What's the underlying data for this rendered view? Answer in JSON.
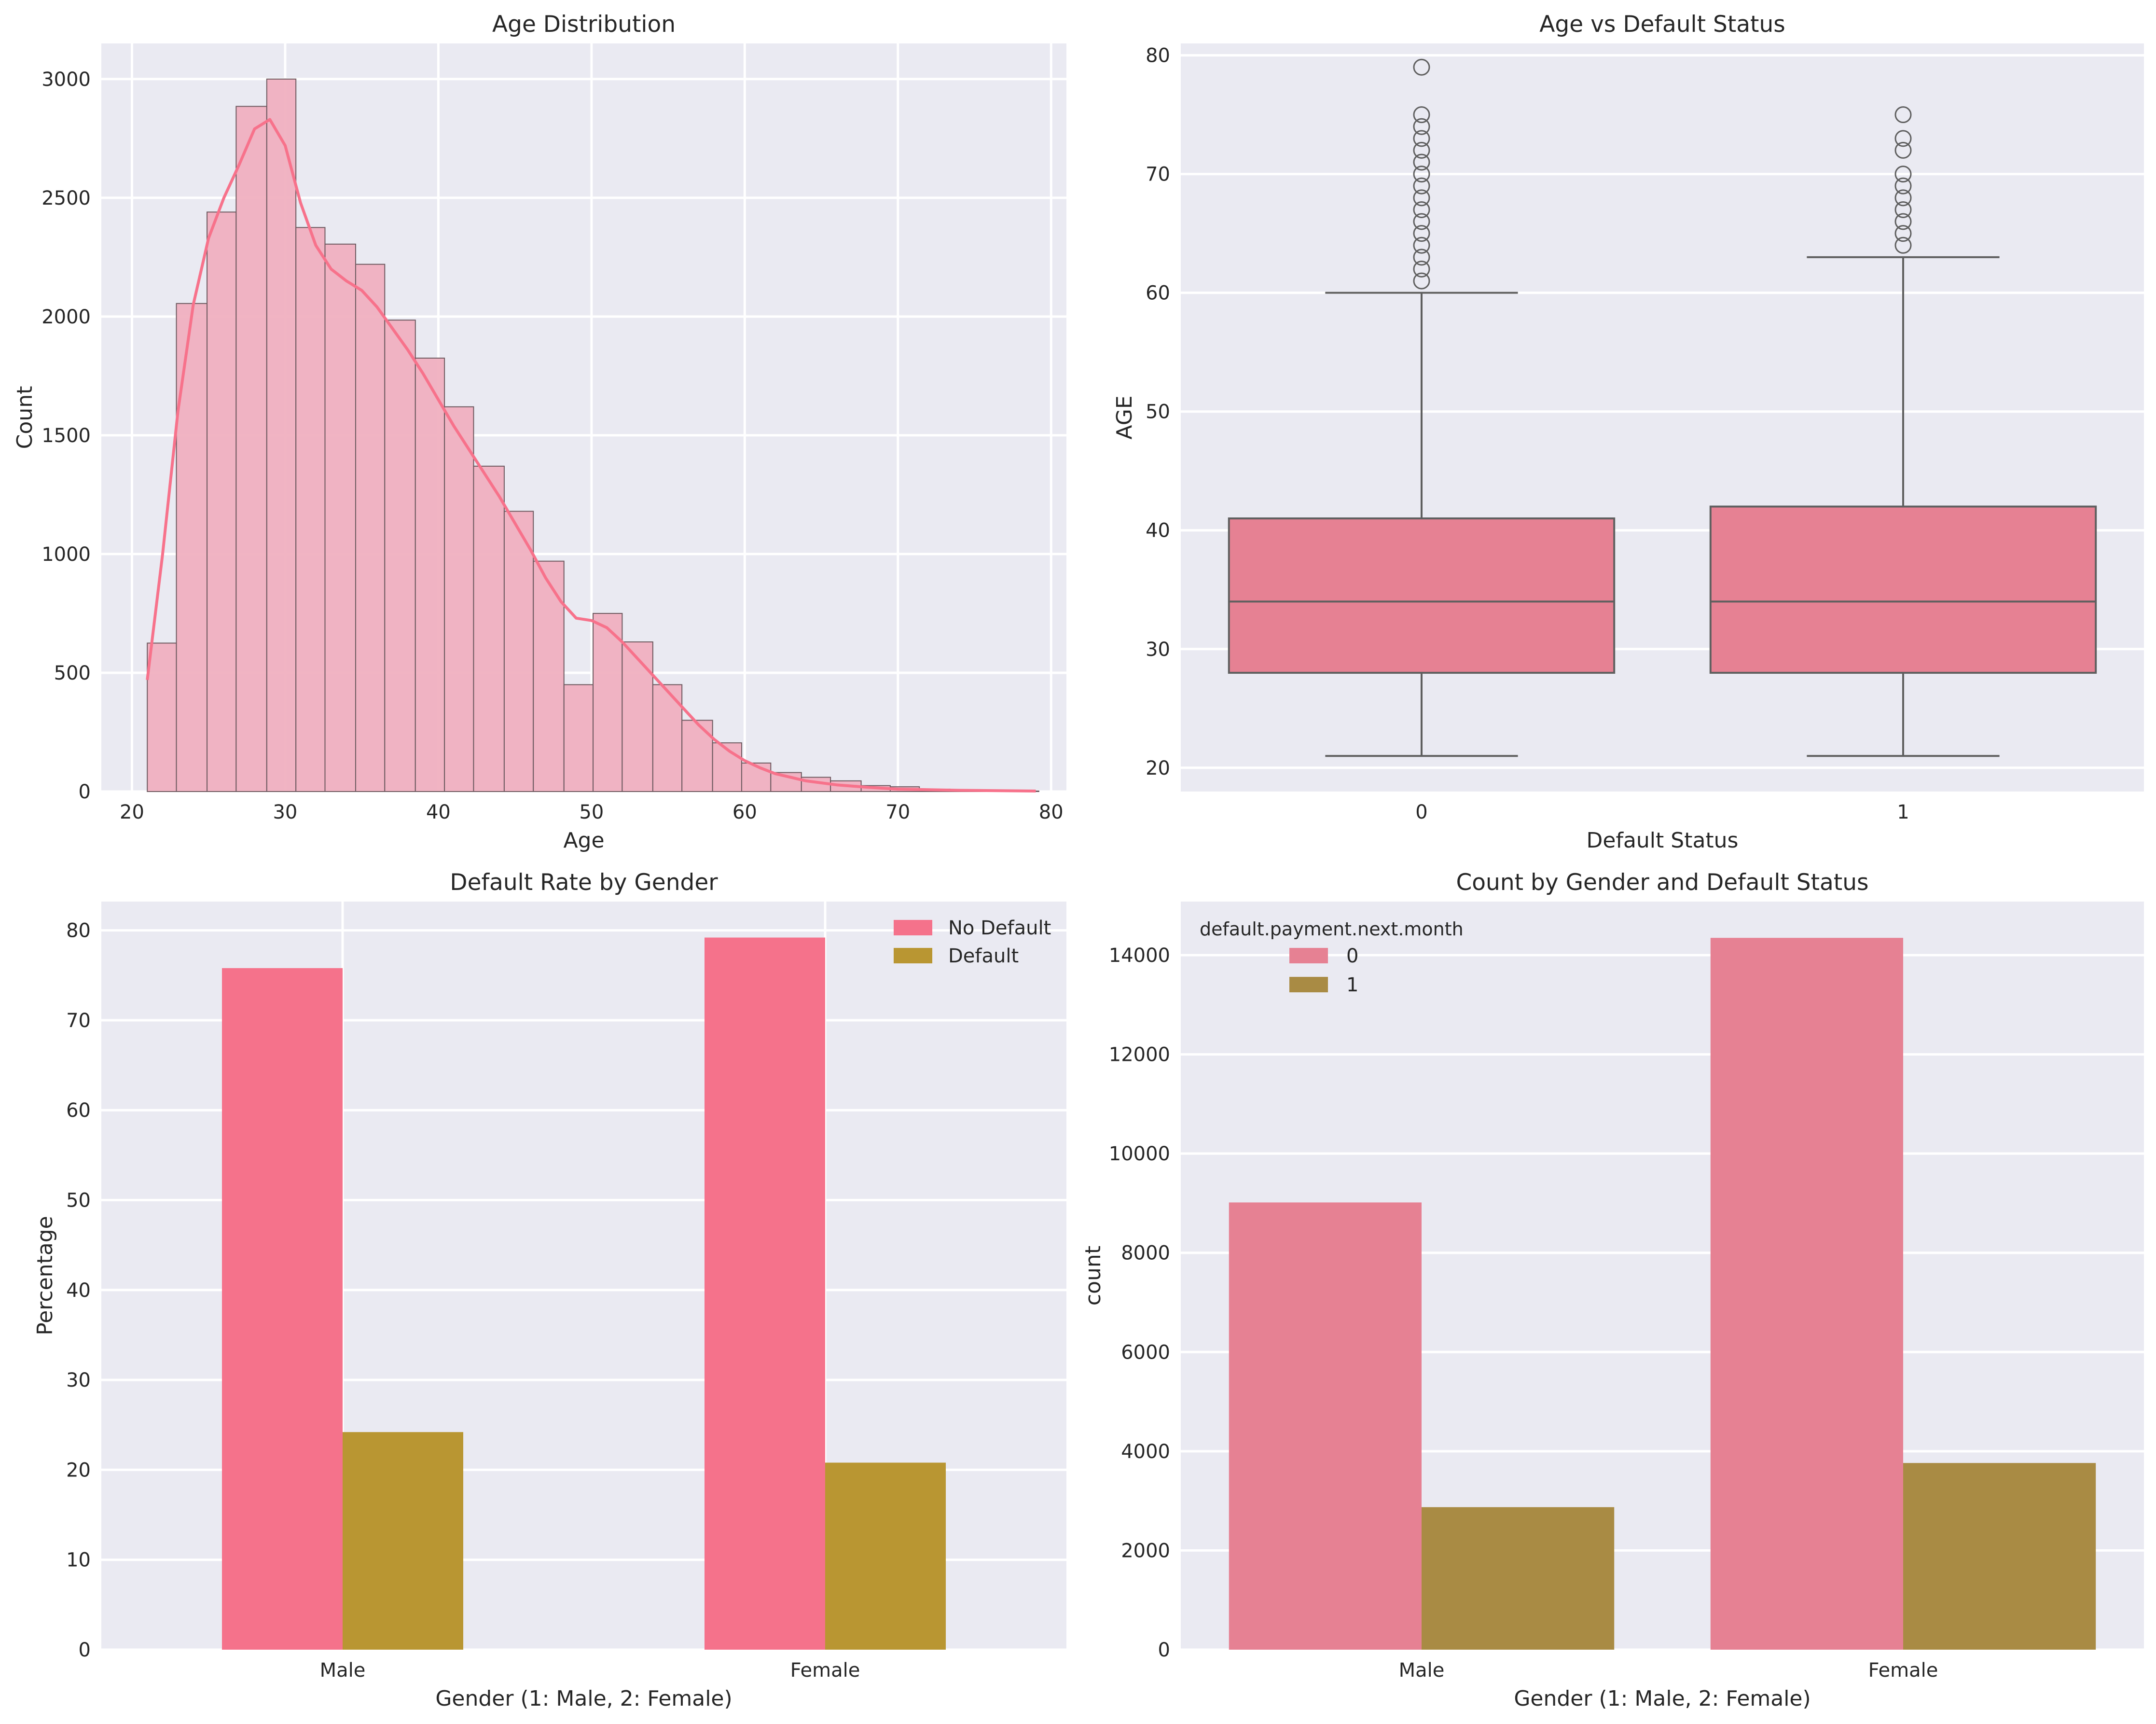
{
  "chart_data": [
    {
      "id": "age-hist",
      "type": "bar",
      "title": "Age Distribution",
      "xlabel": "Age",
      "ylabel": "Count",
      "xlim": [
        18,
        81
      ],
      "ylim": [
        0,
        3150
      ],
      "xticks": [
        20,
        30,
        40,
        50,
        60,
        70,
        80
      ],
      "yticks": [
        0,
        500,
        1000,
        1500,
        2000,
        2500,
        3000
      ],
      "bins": [
        {
          "x0": 21.0,
          "x1": 22.9,
          "count": 625
        },
        {
          "x0": 22.9,
          "x1": 24.9,
          "count": 2055
        },
        {
          "x0": 24.9,
          "x1": 26.8,
          "count": 2440
        },
        {
          "x0": 26.8,
          "x1": 28.8,
          "count": 2885
        },
        {
          "x0": 28.8,
          "x1": 30.7,
          "count": 3000
        },
        {
          "x0": 30.7,
          "x1": 32.6,
          "count": 2375
        },
        {
          "x0": 32.6,
          "x1": 34.6,
          "count": 2305
        },
        {
          "x0": 34.6,
          "x1": 36.5,
          "count": 2220
        },
        {
          "x0": 36.5,
          "x1": 38.5,
          "count": 1985
        },
        {
          "x0": 38.5,
          "x1": 40.4,
          "count": 1825
        },
        {
          "x0": 40.4,
          "x1": 42.3,
          "count": 1620
        },
        {
          "x0": 42.3,
          "x1": 44.3,
          "count": 1370
        },
        {
          "x0": 44.3,
          "x1": 46.2,
          "count": 1180
        },
        {
          "x0": 46.2,
          "x1": 48.2,
          "count": 970
        },
        {
          "x0": 48.2,
          "x1": 50.1,
          "count": 450
        },
        {
          "x0": 50.1,
          "x1": 52.0,
          "count": 750
        },
        {
          "x0": 52.0,
          "x1": 54.0,
          "count": 630
        },
        {
          "x0": 54.0,
          "x1": 55.9,
          "count": 450
        },
        {
          "x0": 55.9,
          "x1": 57.9,
          "count": 300
        },
        {
          "x0": 57.9,
          "x1": 59.8,
          "count": 205
        },
        {
          "x0": 59.8,
          "x1": 61.7,
          "count": 120
        },
        {
          "x0": 61.7,
          "x1": 63.7,
          "count": 80
        },
        {
          "x0": 63.7,
          "x1": 65.6,
          "count": 60
        },
        {
          "x0": 65.6,
          "x1": 67.6,
          "count": 45
        },
        {
          "x0": 67.6,
          "x1": 69.5,
          "count": 25
        },
        {
          "x0": 69.5,
          "x1": 71.4,
          "count": 20
        },
        {
          "x0": 71.4,
          "x1": 73.4,
          "count": 10
        },
        {
          "x0": 73.4,
          "x1": 75.3,
          "count": 8
        },
        {
          "x0": 75.3,
          "x1": 77.3,
          "count": 3
        },
        {
          "x0": 77.3,
          "x1": 79.2,
          "count": 2
        }
      ],
      "kde": [
        [
          21,
          470
        ],
        [
          22,
          1000
        ],
        [
          23,
          1600
        ],
        [
          24,
          2050
        ],
        [
          25,
          2330
        ],
        [
          26,
          2500
        ],
        [
          27,
          2640
        ],
        [
          28,
          2790
        ],
        [
          29,
          2830
        ],
        [
          30,
          2720
        ],
        [
          31,
          2480
        ],
        [
          32,
          2300
        ],
        [
          33,
          2200
        ],
        [
          34,
          2150
        ],
        [
          35,
          2110
        ],
        [
          36,
          2040
        ],
        [
          37,
          1950
        ],
        [
          38,
          1860
        ],
        [
          39,
          1760
        ],
        [
          40,
          1650
        ],
        [
          41,
          1540
        ],
        [
          42,
          1440
        ],
        [
          43,
          1340
        ],
        [
          44,
          1240
        ],
        [
          45,
          1130
        ],
        [
          46,
          1020
        ],
        [
          47,
          900
        ],
        [
          48,
          800
        ],
        [
          49,
          730
        ],
        [
          50,
          720
        ],
        [
          51,
          690
        ],
        [
          52,
          630
        ],
        [
          53,
          560
        ],
        [
          54,
          490
        ],
        [
          55,
          420
        ],
        [
          56,
          350
        ],
        [
          57,
          280
        ],
        [
          58,
          220
        ],
        [
          59,
          170
        ],
        [
          60,
          130
        ],
        [
          61,
          100
        ],
        [
          62,
          75
        ],
        [
          64,
          45
        ],
        [
          66,
          28
        ],
        [
          68,
          18
        ],
        [
          70,
          10
        ],
        [
          74,
          5
        ],
        [
          79,
          2
        ]
      ]
    },
    {
      "id": "age-box",
      "type": "box",
      "title": "Age vs Default Status",
      "xlabel": "Default Status",
      "ylabel": "AGE",
      "ylim": [
        18,
        81
      ],
      "yticks": [
        20,
        30,
        40,
        50,
        60,
        70,
        80
      ],
      "categories": [
        "0",
        "1"
      ],
      "boxes": [
        {
          "category": "0",
          "whisker_low": 21,
          "q1": 28,
          "median": 34,
          "q3": 41,
          "whisker_high": 60,
          "outliers": [
            61,
            62,
            63,
            64,
            65,
            66,
            67,
            68,
            69,
            70,
            71,
            72,
            73,
            74,
            75,
            79
          ]
        },
        {
          "category": "1",
          "whisker_low": 21,
          "q1": 28,
          "median": 34,
          "q3": 42,
          "whisker_high": 63,
          "outliers": [
            64,
            65,
            66,
            67,
            68,
            69,
            70,
            72,
            73,
            75
          ]
        }
      ]
    },
    {
      "id": "default-rate",
      "type": "bar",
      "title": "Default Rate by Gender",
      "xlabel": "Gender (1: Male, 2: Female)",
      "ylabel": "Percentage",
      "ylim": [
        0,
        83.2
      ],
      "yticks": [
        0,
        10,
        20,
        30,
        40,
        50,
        60,
        70,
        80
      ],
      "categories": [
        "Male",
        "Female"
      ],
      "legend": "top-right",
      "series": [
        {
          "name": "No Default",
          "values": [
            75.8,
            79.2
          ]
        },
        {
          "name": "Default",
          "values": [
            24.2,
            20.8
          ]
        }
      ]
    },
    {
      "id": "count-gender",
      "type": "bar",
      "title": "Count by Gender and Default Status",
      "xlabel": "Gender (1: Male, 2: Female)",
      "ylabel": "count",
      "ylim": [
        0,
        15080
      ],
      "yticks": [
        0,
        2000,
        4000,
        6000,
        8000,
        10000,
        12000,
        14000
      ],
      "categories": [
        "Male",
        "Female"
      ],
      "legend_title": "default.payment.next.month",
      "legend": "top-left",
      "series": [
        {
          "name": "0",
          "values": [
            9015,
            14349
          ]
        },
        {
          "name": "1",
          "values": [
            2873,
            3763
          ]
        }
      ]
    }
  ],
  "colors": {
    "hist_fill": "#f0b0c0",
    "hist_edge": "#6e5a60",
    "kde_line": "#f7728b",
    "box_fill": "#e68193",
    "box_line": "#5f5f5f",
    "rate_no_default": "#f5728b",
    "rate_default": "#b99632",
    "count_0": "#e68193",
    "count_1": "#a98b44",
    "axes_bg": "#eaeaf2",
    "grid": "#ffffff",
    "text": "#262626"
  }
}
